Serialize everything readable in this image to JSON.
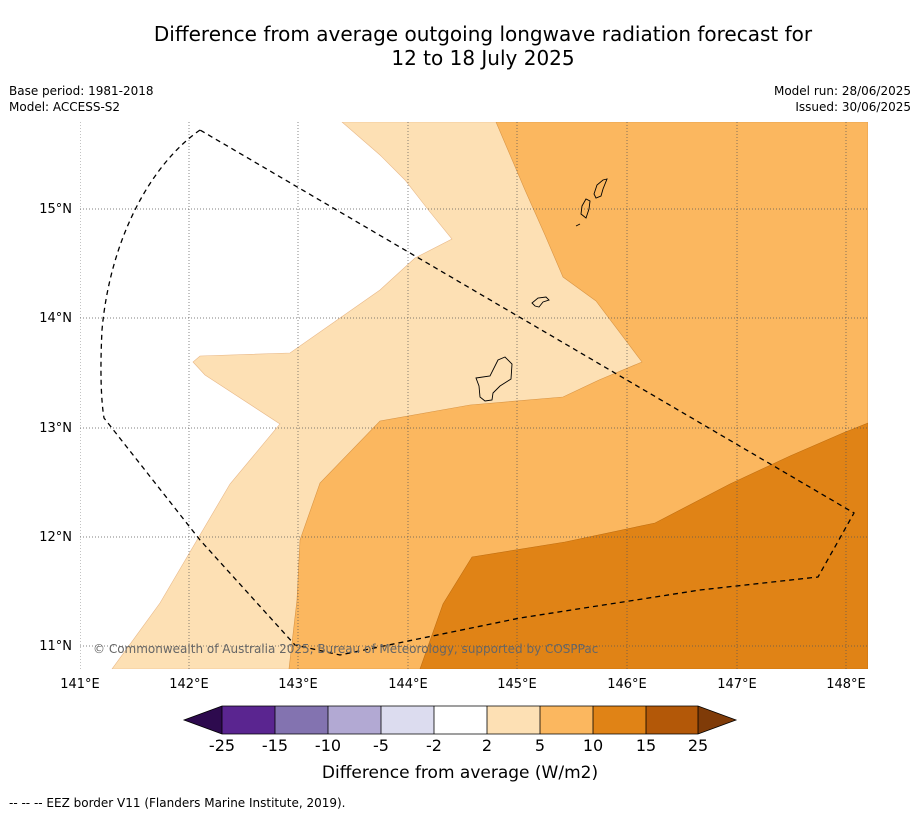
{
  "title_line1": "Difference from average outgoing longwave radiation forecast for",
  "title_line2": "12 to 18 July 2025",
  "base_period": "Base period: 1981-2018",
  "model": "Model: ACCESS-S2",
  "model_run": "Model run: 28/06/2025",
  "issued": "Issued: 30/06/2025",
  "copyright": "© Commonwealth of Australia 2025, Bureau of Meteorology, supported by COSPPac",
  "footer": "--  --  -- EEZ border V11 (Flanders Marine Institute, 2019).",
  "lon_ticks": [
    "141°E",
    "142°E",
    "143°E",
    "144°E",
    "145°E",
    "146°E",
    "147°E",
    "148°E"
  ],
  "lat_ticks": [
    "15°N",
    "14°N",
    "13°N",
    "12°N",
    "11°N"
  ],
  "colorbar": {
    "label": "Difference from average (W/m2)",
    "ticks": [
      "-25",
      "-15",
      "-10",
      "-5",
      "-2",
      "2",
      "5",
      "10",
      "15",
      "25"
    ],
    "colors": {
      "below_min": "#2d0a4e",
      "c1": "#5a2590",
      "c2": "#8373b0",
      "c3": "#b2a9d3",
      "c4": "#dcdcef",
      "c5": "#ffffff",
      "c6": "#fde0b4",
      "c7": "#fbb75f",
      "c8": "#e08316",
      "c9": "#b35808",
      "above_max": "#7f3b08"
    }
  }
}
